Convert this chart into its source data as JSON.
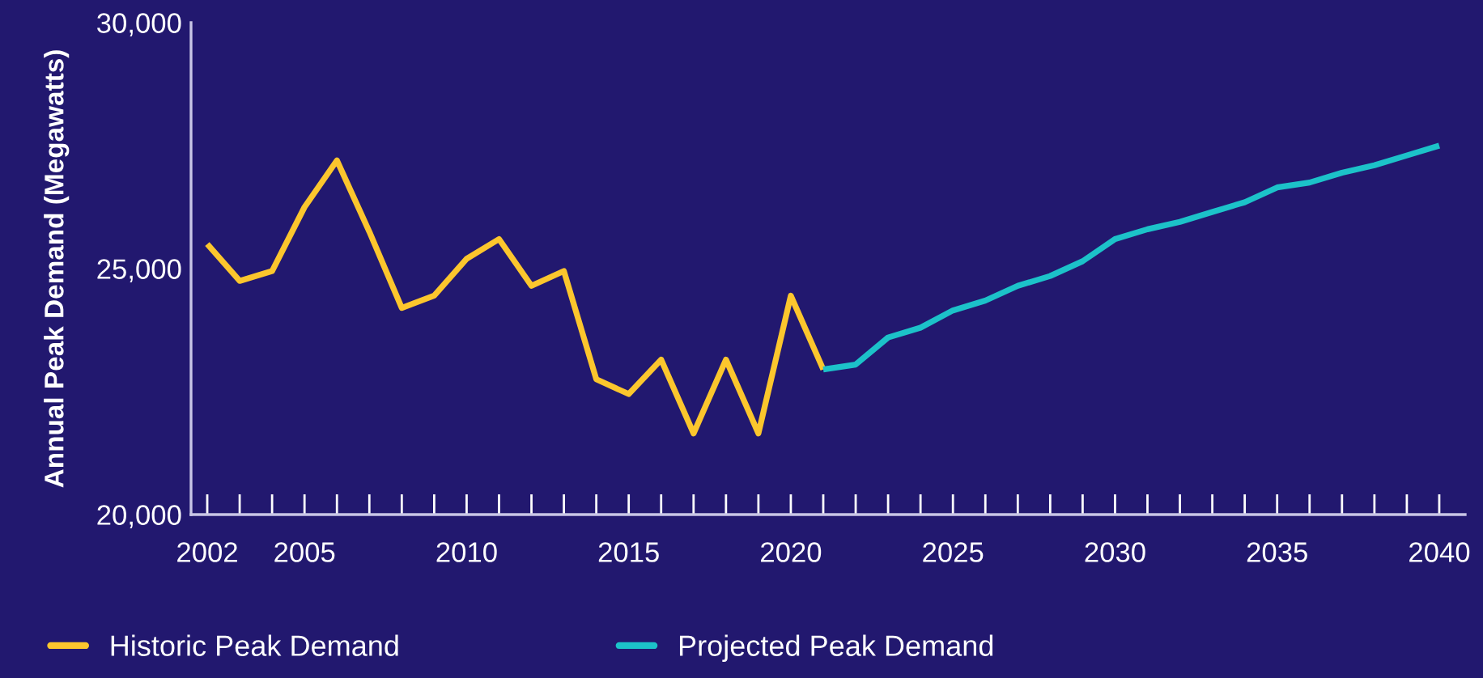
{
  "chart_data": {
    "type": "line",
    "ylabel": "Annual Peak Demand (Megawatts)",
    "xlim": [
      2001.5,
      2040.8
    ],
    "ylim": [
      20000,
      30000
    ],
    "yticks": [
      {
        "value": 20000,
        "label": "20,000"
      },
      {
        "value": 25000,
        "label": "25,000"
      },
      {
        "value": 30000,
        "label": "30,000"
      }
    ],
    "xticks": [
      2002,
      {
        "value": 2003,
        "label": null
      },
      {
        "value": 2004,
        "label": null
      },
      2005,
      {
        "value": 2006,
        "label": null
      },
      {
        "value": 2007,
        "label": null
      },
      {
        "value": 2008,
        "label": null
      },
      {
        "value": 2009,
        "label": null
      },
      2010,
      {
        "value": 2011,
        "label": null
      },
      {
        "value": 2012,
        "label": null
      },
      {
        "value": 2013,
        "label": null
      },
      {
        "value": 2014,
        "label": null
      },
      2015,
      {
        "value": 2016,
        "label": null
      },
      {
        "value": 2017,
        "label": null
      },
      {
        "value": 2018,
        "label": null
      },
      {
        "value": 2019,
        "label": null
      },
      2020,
      {
        "value": 2021,
        "label": null
      },
      {
        "value": 2022,
        "label": null
      },
      {
        "value": 2023,
        "label": null
      },
      {
        "value": 2024,
        "label": null
      },
      2025,
      {
        "value": 2026,
        "label": null
      },
      {
        "value": 2027,
        "label": null
      },
      {
        "value": 2028,
        "label": null
      },
      {
        "value": 2029,
        "label": null
      },
      2030,
      {
        "value": 2031,
        "label": null
      },
      {
        "value": 2032,
        "label": null
      },
      {
        "value": 2033,
        "label": null
      },
      {
        "value": 2034,
        "label": null
      },
      2035,
      {
        "value": 2036,
        "label": null
      },
      {
        "value": 2037,
        "label": null
      },
      {
        "value": 2038,
        "label": null
      },
      {
        "value": 2039,
        "label": null
      },
      2040
    ],
    "grid": false,
    "legend": "bottom",
    "marker": "none",
    "line_style": "solid",
    "series": [
      {
        "name": "Historic Peak Demand",
        "color": "#fcc62d",
        "x": [
          2002,
          2003,
          2004,
          2005,
          2006,
          2007,
          2008,
          2009,
          2010,
          2011,
          2012,
          2013,
          2014,
          2015,
          2016,
          2017,
          2018,
          2019,
          2020,
          2021
        ],
        "values": [
          25500,
          24750,
          24950,
          26250,
          27200,
          25750,
          24200,
          24450,
          25200,
          25600,
          24650,
          24950,
          22750,
          22450,
          23150,
          21650,
          23150,
          21650,
          24450,
          22950
        ]
      },
      {
        "name": "Projected Peak Demand",
        "color": "#1cc2c9",
        "x": [
          2021,
          2022,
          2023,
          2024,
          2025,
          2026,
          2027,
          2028,
          2029,
          2030,
          2031,
          2032,
          2033,
          2034,
          2035,
          2036,
          2037,
          2038,
          2039,
          2040
        ],
        "values": [
          22950,
          23050,
          23600,
          23800,
          24150,
          24350,
          24650,
          24850,
          25150,
          25600,
          25800,
          25950,
          26150,
          26350,
          26650,
          26750,
          26950,
          27100,
          27300,
          27500
        ]
      }
    ]
  }
}
